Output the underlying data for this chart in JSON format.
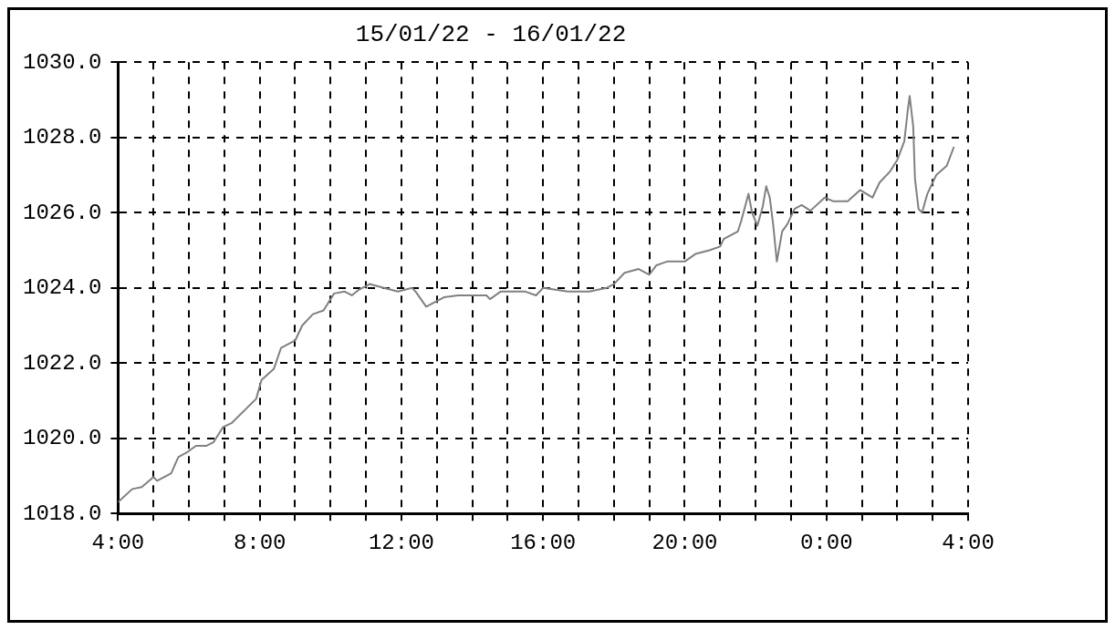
{
  "chart_data": {
    "type": "line",
    "title": "15/01/22 - 16/01/22",
    "x": [
      "--01-15T04:00",
      "--01-15T04:24",
      "--01-15T04:40",
      "--01-15T05:00",
      "--01-15T05:06",
      "--01-15T05:30",
      "--01-15T05:42",
      "--01-15T05:58",
      "--01-15T06:12",
      "--01-15T06:30",
      "--01-15T06:42",
      "--01-15T06:58",
      "--01-15T07:12",
      "--01-15T07:54",
      "--01-15T08:03",
      "--01-15T08:24",
      "--01-15T08:36",
      "--01-15T09:00",
      "--01-15T09:12",
      "--01-15T09:30",
      "--01-15T09:48",
      "--01-15T10:06",
      "--01-15T10:24",
      "--01-15T10:36",
      "--01-15T10:48",
      "--01-15T11:06",
      "--01-15T11:30",
      "--01-15T11:54",
      "--01-15T12:18",
      "--01-15T12:24",
      "--01-15T12:42",
      "--01-15T13:12",
      "--01-15T13:36",
      "--01-15T14:24",
      "--01-15T14:30",
      "--01-15T14:48",
      "--01-15T15:12",
      "--01-15T15:30",
      "--01-15T15:48",
      "--01-15T16:00",
      "--01-15T16:42",
      "--01-15T17:18",
      "--01-15T17:48",
      "--01-15T18:00",
      "--01-15T18:18",
      "--01-15T18:42",
      "--01-15T19:00",
      "--01-15T19:12",
      "--01-15T19:30",
      "--01-15T20:00",
      "--01-15T20:18",
      "--01-15T20:42",
      "--01-15T21:00",
      "--01-15T21:06",
      "--01-15T21:30",
      "--01-15T21:36",
      "--01-15T21:48",
      "--01-15T21:54",
      "--01-15T22:03",
      "--01-15T22:12",
      "--01-15T22:18",
      "--01-15T22:24",
      "--01-15T22:30",
      "--01-15T22:36",
      "--01-15T22:45",
      "--01-15T22:54",
      "--01-15T23:06",
      "--01-15T23:18",
      "--01-15T23:33",
      "--01-15T23:57",
      "--01-16T00:12",
      "--01-16T00:36",
      "--01-16T00:57",
      "--01-16T01:18",
      "--01-16T01:30",
      "--01-16T01:48",
      "--01-16T02:00",
      "--01-16T02:12",
      "--01-16T02:18",
      "--01-16T02:21",
      "--01-16T02:27",
      "--01-16T02:30",
      "--01-16T02:36",
      "--01-16T02:42",
      "--01-16T02:51",
      "--01-16T03:06",
      "--01-16T03:24",
      "--01-16T03:36"
    ],
    "series": [
      {
        "color": "#808080",
        "values": [
          1018.3,
          1018.65,
          1018.7,
          1018.97,
          1018.87,
          1019.07,
          1019.5,
          1019.64,
          1019.8,
          1019.8,
          1019.9,
          1020.3,
          1020.4,
          1021.05,
          1021.55,
          1021.85,
          1022.4,
          1022.6,
          1023.0,
          1023.3,
          1023.4,
          1023.85,
          1023.9,
          1023.8,
          1023.95,
          1024.1,
          1024.0,
          1023.9,
          1024.0,
          1023.9,
          1023.5,
          1023.75,
          1023.8,
          1023.8,
          1023.7,
          1023.9,
          1023.9,
          1023.9,
          1023.8,
          1024.0,
          1023.9,
          1023.9,
          1024.0,
          1024.1,
          1024.4,
          1024.5,
          1024.35,
          1024.6,
          1024.7,
          1024.7,
          1024.9,
          1025.0,
          1025.1,
          1025.3,
          1025.5,
          1025.8,
          1026.5,
          1026.0,
          1025.65,
          1026.15,
          1026.7,
          1026.4,
          1025.65,
          1024.7,
          1025.5,
          1025.7,
          1026.1,
          1026.2,
          1026.05,
          1026.4,
          1026.3,
          1026.3,
          1026.6,
          1026.4,
          1026.8,
          1027.1,
          1027.4,
          1027.9,
          1028.75,
          1029.1,
          1028.3,
          1026.9,
          1026.1,
          1026.0,
          1026.5,
          1027.0,
          1027.25,
          1027.75
        ]
      }
    ],
    "xlim": [
      "--01-15T04:00",
      "--01-16T04:00"
    ],
    "xticks": [
      {
        "value": "--01-15T04:00",
        "label": "4:00"
      },
      {
        "value": "--01-15T05:00",
        "label": null
      },
      {
        "value": "--01-15T06:00",
        "label": null
      },
      {
        "value": "--01-15T07:00",
        "label": null
      },
      {
        "value": "--01-15T08:00",
        "label": "8:00"
      },
      {
        "value": "--01-15T09:00",
        "label": null
      },
      {
        "value": "--01-15T10:00",
        "label": null
      },
      {
        "value": "--01-15T11:00",
        "label": null
      },
      {
        "value": "--01-15T12:00",
        "label": "12:00"
      },
      {
        "value": "--01-15T13:00",
        "label": null
      },
      {
        "value": "--01-15T14:00",
        "label": null
      },
      {
        "value": "--01-15T15:00",
        "label": null
      },
      {
        "value": "--01-15T16:00",
        "label": "16:00"
      },
      {
        "value": "--01-15T17:00",
        "label": null
      },
      {
        "value": "--01-15T18:00",
        "label": null
      },
      {
        "value": "--01-15T19:00",
        "label": null
      },
      {
        "value": "--01-15T20:00",
        "label": "20:00"
      },
      {
        "value": "--01-15T21:00",
        "label": null
      },
      {
        "value": "--01-15T22:00",
        "label": null
      },
      {
        "value": "--01-15T23:00",
        "label": null
      },
      {
        "value": "--01-16T00:00",
        "label": "0:00"
      },
      {
        "value": "--01-16T01:00",
        "label": null
      },
      {
        "value": "--01-16T02:00",
        "label": null
      },
      {
        "value": "--01-16T03:00",
        "label": null
      },
      {
        "value": "--01-16T04:00",
        "label": "4:00"
      }
    ],
    "ylim": [
      1018,
      1030
    ],
    "yticks": [
      {
        "value": 1018,
        "label": "1018.0"
      },
      {
        "value": 1020,
        "label": "1020.0"
      },
      {
        "value": 1022,
        "label": "1022.0"
      },
      {
        "value": 1024,
        "label": "1024.0"
      },
      {
        "value": 1026,
        "label": "1026.0"
      },
      {
        "value": 1028,
        "label": "1028.0"
      },
      {
        "value": 1030,
        "label": "1030.0"
      }
    ],
    "grid": true,
    "legend": false,
    "marker": "none",
    "line_style": "solid"
  }
}
